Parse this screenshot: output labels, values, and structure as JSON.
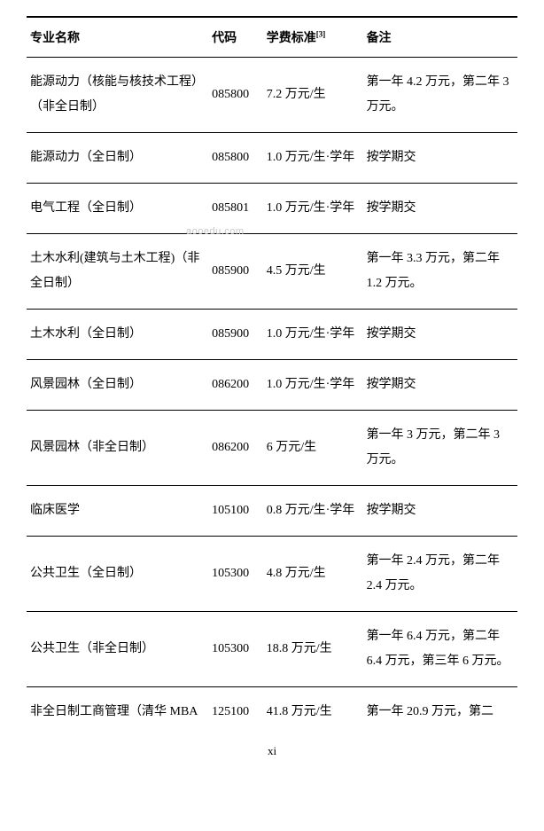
{
  "table": {
    "headers": {
      "name": "专业名称",
      "code": "代码",
      "fee": "学费标准",
      "fee_sup": "[3]",
      "note": "备注"
    },
    "rows": [
      {
        "name": "能源动力（核能与核技术工程）（非全日制）",
        "code": "085800",
        "fee": "7.2 万元/生",
        "note": "第一年 4.2 万元，第二年 3 万元。"
      },
      {
        "name": "能源动力（全日制）",
        "code": "085800",
        "fee": "1.0 万元/生·学年",
        "note": "按学期交"
      },
      {
        "name": "电气工程（全日制）",
        "code": "085801",
        "fee": "1.0 万元/生·学年",
        "note": "按学期交"
      },
      {
        "name": "土木水利(建筑与土木工程)（非全日制）",
        "code": "085900",
        "fee": "4.5 万元/生",
        "note": "第一年 3.3 万元，第二年 1.2 万元。"
      },
      {
        "name": "土木水利（全日制）",
        "code": "085900",
        "fee": "1.0 万元/生·学年",
        "note": "按学期交"
      },
      {
        "name": "风景园林（全日制）",
        "code": "086200",
        "fee": "1.0 万元/生·学年",
        "note": "按学期交"
      },
      {
        "name": "风景园林（非全日制）",
        "code": "086200",
        "fee": "6 万元/生",
        "note": "第一年 3 万元，第二年 3 万元。"
      },
      {
        "name": "临床医学",
        "code": "105100",
        "fee": "0.8 万元/生·学年",
        "note": "按学期交"
      },
      {
        "name": "公共卫生（全日制）",
        "code": "105300",
        "fee": "4.8 万元/生",
        "note": "第一年 2.4 万元，第二年 2.4 万元。"
      },
      {
        "name": "公共卫生（非全日制）",
        "code": "105300",
        "fee": "18.8 万元/生",
        "note": "第一年 6.4 万元，第二年 6.4 万元，第三年 6 万元。"
      },
      {
        "name": "非全日制工商管理（清华 MBA",
        "code": "125100",
        "fee": "41.8 万元/生",
        "note": "第一年 20.9 万元，第二"
      }
    ]
  },
  "watermark": "aooedu.com",
  "page_number": "xi",
  "colors": {
    "text": "#000000",
    "background": "#ffffff",
    "border": "#000000",
    "watermark": "#c8c8c8"
  }
}
